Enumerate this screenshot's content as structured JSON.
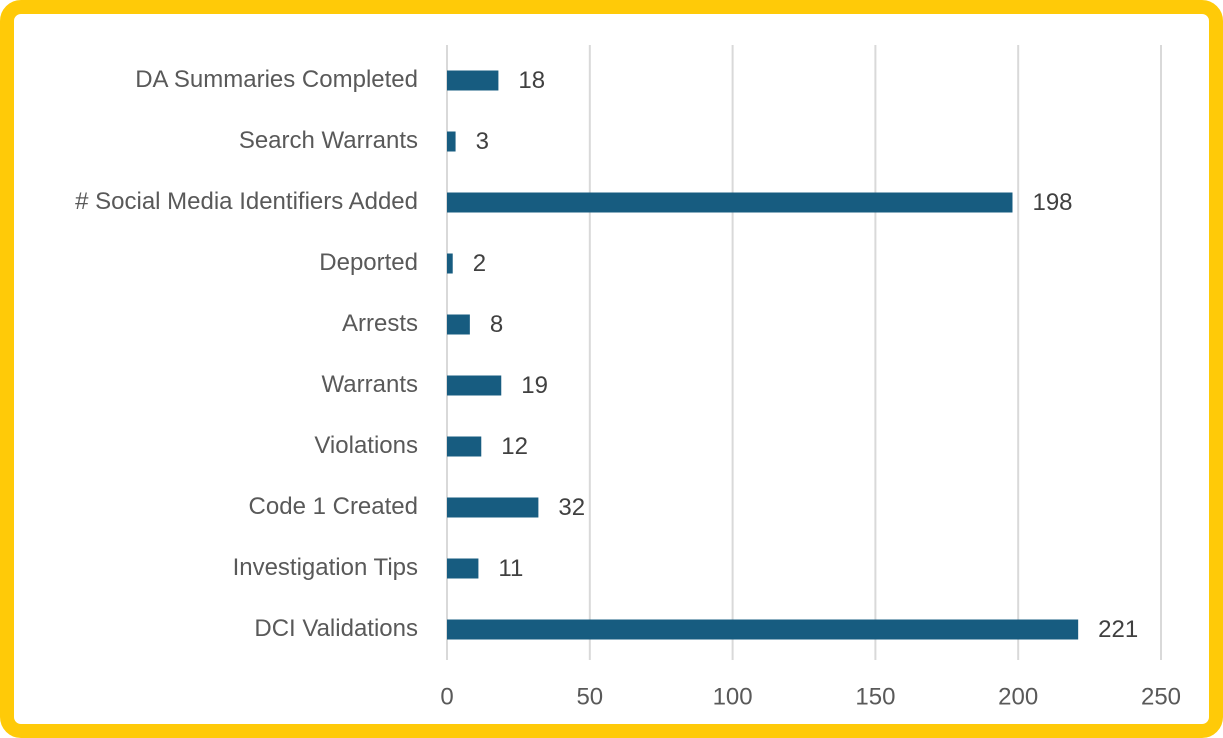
{
  "chart_data": {
    "type": "bar",
    "orientation": "horizontal",
    "categories": [
      "DA Summaries Completed",
      "Search Warrants",
      "# Social Media Identifiers Added",
      "Deported",
      "Arrests",
      "Warrants",
      "Violations",
      "Code 1 Created",
      "Investigation Tips",
      "DCI Validations"
    ],
    "values": [
      18,
      3,
      198,
      2,
      8,
      19,
      12,
      32,
      11,
      221
    ],
    "color": "#175c80",
    "xlim": [
      0,
      250
    ],
    "xticks": [
      0,
      50,
      100,
      150,
      200,
      250
    ],
    "grid": true
  }
}
